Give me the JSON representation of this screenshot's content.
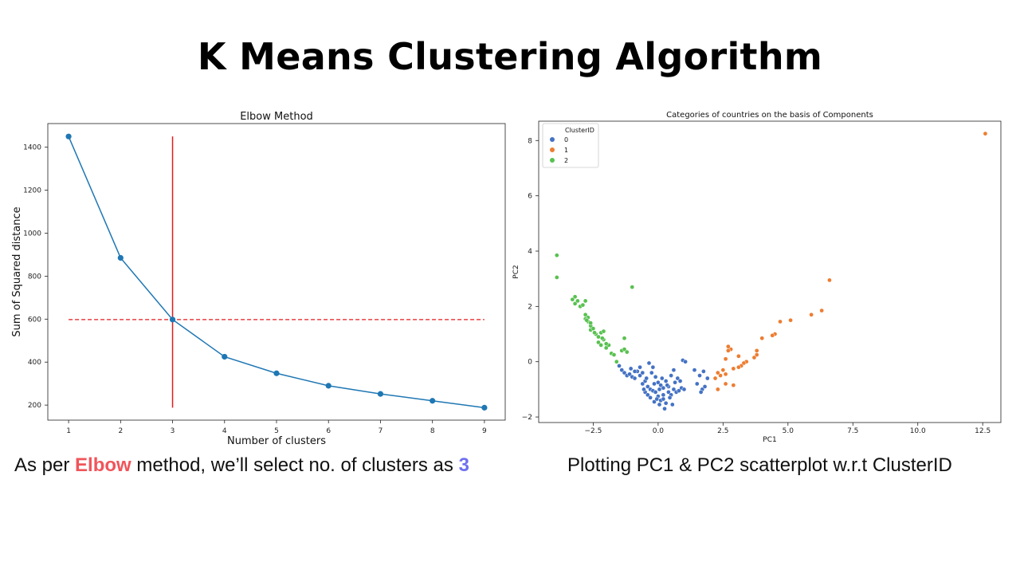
{
  "slide": {
    "title": "K Means Clustering Algorithm",
    "caption_left": {
      "before": "As per ",
      "highlight": "Elbow",
      "middle": " method, we’ll select  no. of clusters as ",
      "value": "3"
    },
    "caption_right": "Plotting PC1 & PC2 scatterplot w.r.t ClusterID"
  },
  "colors": {
    "highlight_red": "#f0555a",
    "highlight_blue": "#6f6ff0"
  },
  "chart_data": [
    {
      "type": "line",
      "title": "Elbow Method",
      "xlabel": "Number of clusters",
      "ylabel": "Sum of Squared distance",
      "x": [
        1,
        2,
        3,
        4,
        5,
        6,
        7,
        8,
        9
      ],
      "series": [
        {
          "values": [
            1450,
            885,
            598,
            425,
            348,
            290,
            252,
            220,
            188
          ],
          "color": "#1f77b4"
        }
      ],
      "xlim": [
        0.6,
        9.4
      ],
      "ylim": [
        130,
        1510
      ],
      "xticks": [
        1,
        2,
        3,
        4,
        5,
        6,
        7,
        8,
        9
      ],
      "yticks": [
        200,
        400,
        600,
        800,
        1000,
        1200,
        1400
      ],
      "annotations": {
        "vertical_line": {
          "x": 3,
          "y_range": [
            188,
            1450
          ],
          "color": "#e41a1c",
          "style": "solid"
        },
        "horizontal_line": {
          "y": 598,
          "x_range": [
            1,
            9
          ],
          "color": "#e41a1c",
          "style": "dashed"
        }
      },
      "grid": false
    },
    {
      "type": "scatter",
      "title": "Categories of countries on the basis of Components",
      "xlabel": "PC1",
      "ylabel": "PC2",
      "xlim": [
        -4.6,
        13.2
      ],
      "ylim": [
        -2.2,
        8.7
      ],
      "xticks": [
        -2.5,
        0.0,
        2.5,
        5.0,
        7.5,
        10.0,
        12.5
      ],
      "xtick_labels": [
        "−2.5",
        "0.0",
        "2.5",
        "5.0",
        "7.5",
        "10.0",
        "12.5"
      ],
      "yticks": [
        -2,
        0,
        2,
        4,
        6,
        8
      ],
      "ytick_labels": [
        "−2",
        "0",
        "2",
        "4",
        "6",
        "8"
      ],
      "legend": {
        "title": "ClusterID",
        "placement": "top-left"
      },
      "grid": false,
      "series": [
        {
          "name": "0",
          "color": "#4472c4",
          "points": [
            [
              -1.5,
              -0.15
            ],
            [
              -1.4,
              -0.3
            ],
            [
              -1.3,
              -0.4
            ],
            [
              -1.2,
              -0.5
            ],
            [
              -1.1,
              -0.45
            ],
            [
              -1.0,
              -0.55
            ],
            [
              -0.9,
              -0.6
            ],
            [
              -1.05,
              -0.25
            ],
            [
              -0.8,
              -0.35
            ],
            [
              -0.7,
              -0.5
            ],
            [
              -0.6,
              -0.8
            ],
            [
              -0.5,
              -0.7
            ],
            [
              -0.4,
              -0.9
            ],
            [
              -0.3,
              -1.0
            ],
            [
              -0.2,
              -0.2
            ],
            [
              -0.35,
              -0.05
            ],
            [
              -0.25,
              -0.4
            ],
            [
              -0.1,
              -0.55
            ],
            [
              -0.5,
              -1.1
            ],
            [
              -0.4,
              -1.2
            ],
            [
              -0.3,
              -1.3
            ],
            [
              -0.2,
              -1.05
            ],
            [
              -0.1,
              -1.1
            ],
            [
              0.0,
              -1.25
            ],
            [
              0.1,
              -1.4
            ],
            [
              0.2,
              -1.35
            ],
            [
              0.3,
              -1.5
            ],
            [
              0.25,
              -1.7
            ],
            [
              0.4,
              -1.1
            ],
            [
              0.5,
              -1.2
            ],
            [
              0.6,
              -1.0
            ],
            [
              0.7,
              -1.1
            ],
            [
              0.8,
              -1.05
            ],
            [
              0.9,
              -0.95
            ],
            [
              0.0,
              -0.75
            ],
            [
              0.1,
              -0.85
            ],
            [
              0.2,
              -0.95
            ],
            [
              0.3,
              -0.7
            ],
            [
              0.4,
              -0.9
            ],
            [
              0.5,
              -0.5
            ],
            [
              -0.6,
              -0.4
            ],
            [
              -0.45,
              -0.6
            ],
            [
              -0.15,
              -0.8
            ],
            [
              0.05,
              -1.0
            ],
            [
              0.15,
              -0.6
            ],
            [
              0.35,
              -0.85
            ],
            [
              0.45,
              -1.3
            ],
            [
              0.55,
              -1.55
            ],
            [
              0.65,
              -0.75
            ],
            [
              0.75,
              -0.6
            ],
            [
              0.85,
              -0.7
            ],
            [
              0.95,
              0.05
            ],
            [
              1.05,
              0.0
            ],
            [
              1.0,
              -1.0
            ],
            [
              1.4,
              -0.3
            ],
            [
              1.5,
              -0.8
            ],
            [
              1.6,
              -0.5
            ],
            [
              1.7,
              -1.0
            ],
            [
              1.8,
              -0.9
            ],
            [
              1.9,
              -0.6
            ],
            [
              1.75,
              -0.35
            ],
            [
              1.65,
              -1.1
            ],
            [
              -0.7,
              -0.2
            ],
            [
              -0.9,
              -0.35
            ],
            [
              -0.55,
              -1.0
            ],
            [
              -0.15,
              -1.45
            ],
            [
              0.05,
              -1.55
            ],
            [
              0.6,
              -0.3
            ],
            [
              0.2,
              -1.2
            ],
            [
              -0.05,
              -1.35
            ]
          ]
        },
        {
          "name": "1",
          "color": "#ed7d31",
          "points": [
            [
              12.6,
              8.25
            ],
            [
              6.6,
              2.95
            ],
            [
              6.3,
              1.85
            ],
            [
              5.9,
              1.7
            ],
            [
              5.1,
              1.5
            ],
            [
              4.7,
              1.45
            ],
            [
              4.5,
              1.0
            ],
            [
              4.4,
              0.95
            ],
            [
              4.0,
              0.85
            ],
            [
              3.8,
              0.4
            ],
            [
              3.8,
              0.25
            ],
            [
              3.7,
              0.15
            ],
            [
              3.4,
              0.0
            ],
            [
              3.3,
              -0.05
            ],
            [
              3.2,
              -0.15
            ],
            [
              3.1,
              -0.2
            ],
            [
              3.1,
              0.2
            ],
            [
              2.9,
              -0.25
            ],
            [
              2.8,
              0.45
            ],
            [
              2.7,
              0.55
            ],
            [
              2.7,
              0.4
            ],
            [
              2.6,
              0.1
            ],
            [
              2.5,
              -0.3
            ],
            [
              2.4,
              -0.5
            ],
            [
              2.3,
              -0.4
            ],
            [
              2.2,
              -0.6
            ],
            [
              2.3,
              -1.0
            ],
            [
              2.6,
              -0.8
            ],
            [
              2.9,
              -0.85
            ],
            [
              2.6,
              -0.45
            ]
          ]
        },
        {
          "name": "2",
          "color": "#59c151",
          "points": [
            [
              -3.9,
              3.85
            ],
            [
              -3.9,
              3.05
            ],
            [
              -1.0,
              2.7
            ],
            [
              -3.2,
              2.35
            ],
            [
              -3.3,
              2.25
            ],
            [
              -3.2,
              2.1
            ],
            [
              -3.0,
              2.0
            ],
            [
              -2.8,
              2.2
            ],
            [
              -2.8,
              1.7
            ],
            [
              -2.7,
              1.6
            ],
            [
              -2.8,
              1.55
            ],
            [
              -2.7,
              1.45
            ],
            [
              -2.6,
              1.3
            ],
            [
              -2.6,
              1.15
            ],
            [
              -2.5,
              1.2
            ],
            [
              -2.4,
              1.0
            ],
            [
              -2.3,
              0.9
            ],
            [
              -2.2,
              1.05
            ],
            [
              -2.1,
              1.1
            ],
            [
              -2.3,
              0.7
            ],
            [
              -2.2,
              0.6
            ],
            [
              -2.1,
              0.8
            ],
            [
              -2.0,
              0.5
            ],
            [
              -1.9,
              0.6
            ],
            [
              -1.8,
              0.3
            ],
            [
              -1.7,
              0.25
            ],
            [
              -1.6,
              0.0
            ],
            [
              -1.4,
              0.4
            ],
            [
              -1.3,
              0.45
            ],
            [
              -1.2,
              0.35
            ],
            [
              -1.3,
              0.85
            ],
            [
              -2.0,
              0.65
            ],
            [
              -2.6,
              1.4
            ],
            [
              -2.45,
              1.05
            ],
            [
              -2.15,
              0.85
            ],
            [
              -2.75,
              1.5
            ],
            [
              -3.1,
              2.2
            ],
            [
              -2.9,
              2.05
            ]
          ]
        }
      ]
    }
  ]
}
